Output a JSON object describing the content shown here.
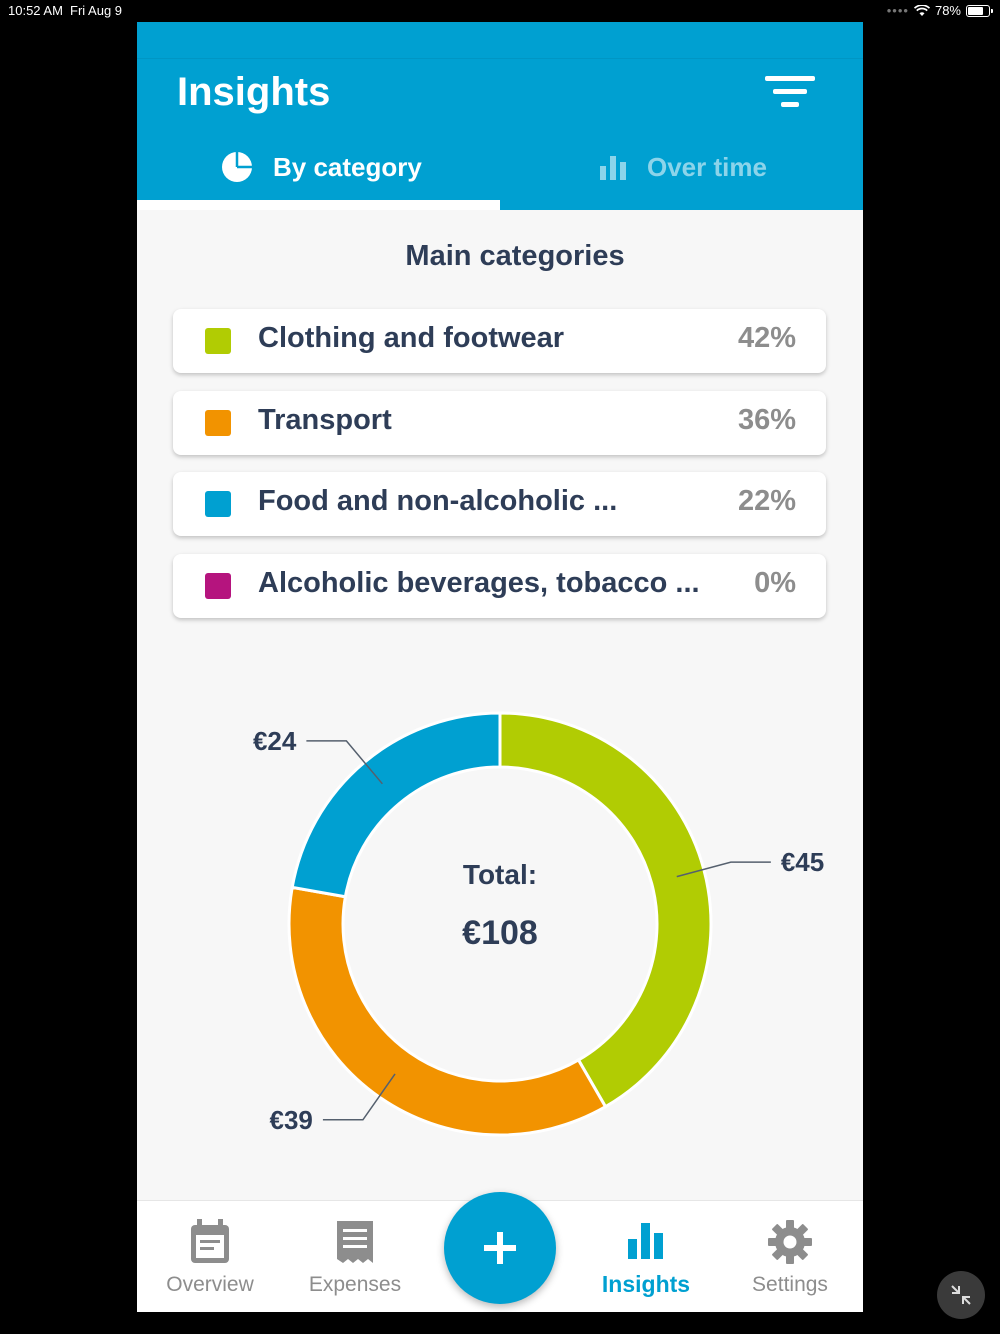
{
  "status_bar": {
    "time": "10:52 AM",
    "date": "Fri Aug 9",
    "battery": "78%",
    "battery_level": 0.78
  },
  "header": {
    "title": "Insights",
    "tabs": [
      {
        "label": "By category",
        "icon": "pie-chart-icon",
        "active": true
      },
      {
        "label": "Over time",
        "icon": "bar-chart-icon",
        "active": false
      }
    ]
  },
  "section_title": "Main categories",
  "categories": [
    {
      "name": "Clothing and footwear",
      "percent": "42%",
      "color": "#b1cc03"
    },
    {
      "name": "Transport",
      "percent": "36%",
      "color": "#f29300"
    },
    {
      "name": "Food and non-alcoholic ...",
      "percent": "22%",
      "color": "#00a0d1"
    },
    {
      "name": "Alcoholic beverages, tobacco ...",
      "percent": "0%",
      "color": "#b5147e"
    }
  ],
  "chart_data": {
    "type": "pie",
    "center_label": "Total:",
    "center_value": "€108",
    "slices": [
      {
        "category": "Clothing and footwear",
        "value": 45,
        "label": "€45",
        "color": "#b1cc03"
      },
      {
        "category": "Transport",
        "value": 39,
        "label": "€39",
        "color": "#f29300"
      },
      {
        "category": "Food and non-alcoholic ...",
        "value": 24,
        "label": "€24",
        "color": "#00a0d1"
      },
      {
        "category": "Alcoholic beverages, tobacco ...",
        "value": 0,
        "label": "",
        "color": "#b5147e"
      }
    ]
  },
  "bottom_nav": {
    "items": [
      {
        "label": "Overview",
        "icon": "calendar-icon",
        "active": false
      },
      {
        "label": "Expenses",
        "icon": "receipt-icon",
        "active": false
      },
      {
        "label": "Insights",
        "icon": "bar-chart-icon",
        "active": true
      },
      {
        "label": "Settings",
        "icon": "gear-icon",
        "active": false
      }
    ],
    "fab_icon": "plus-icon"
  },
  "colors": {
    "primary": "#00a0d1",
    "text_dark": "#2e3d57",
    "text_muted": "#8d8d8d"
  }
}
